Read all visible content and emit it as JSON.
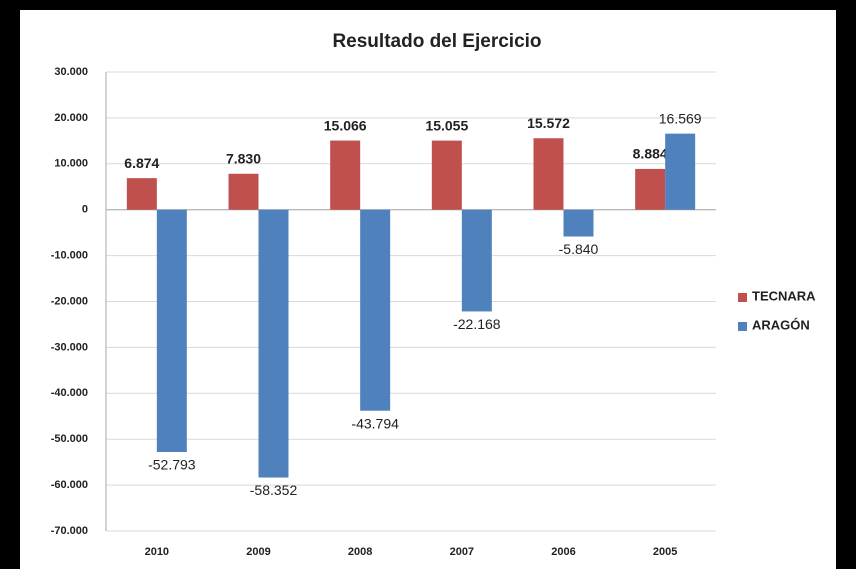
{
  "chart_data": {
    "type": "bar",
    "title": "Resultado del Ejercicio",
    "categories": [
      "2010",
      "2009",
      "2008",
      "2007",
      "2006",
      "2005"
    ],
    "series": [
      {
        "name": "TECNARA",
        "color": "#c0504d",
        "values": [
          6874,
          7830,
          15066,
          15055,
          15572,
          8884
        ],
        "value_labels": [
          "6.874",
          "7.830",
          "15.066",
          "15.055",
          "15.572",
          "8.884"
        ]
      },
      {
        "name": "ARAGÓN",
        "color": "#4f81bd",
        "values": [
          -52793,
          -58352,
          -43794,
          -22168,
          -5840,
          16569
        ],
        "value_labels": [
          "-52.793",
          "-58.352",
          "-43.794",
          "-22.168",
          "-5.840",
          "16.569"
        ]
      }
    ],
    "ylim": [
      -70000,
      30000
    ],
    "yticks": [
      {
        "value": 30000,
        "label": "30.000"
      },
      {
        "value": 20000,
        "label": "20.000"
      },
      {
        "value": 10000,
        "label": "10.000"
      },
      0,
      {
        "value": -10000,
        "label": "-10.000"
      },
      {
        "value": -20000,
        "label": "-20.000"
      },
      {
        "value": -30000,
        "label": "-30.000"
      },
      {
        "value": -40000,
        "label": "-40.000"
      },
      {
        "value": -50000,
        "label": "-50.000"
      },
      {
        "value": -60000,
        "label": "-60.000"
      },
      {
        "value": -70000,
        "label": "-70.000"
      }
    ],
    "grid": true,
    "legend": "right"
  }
}
